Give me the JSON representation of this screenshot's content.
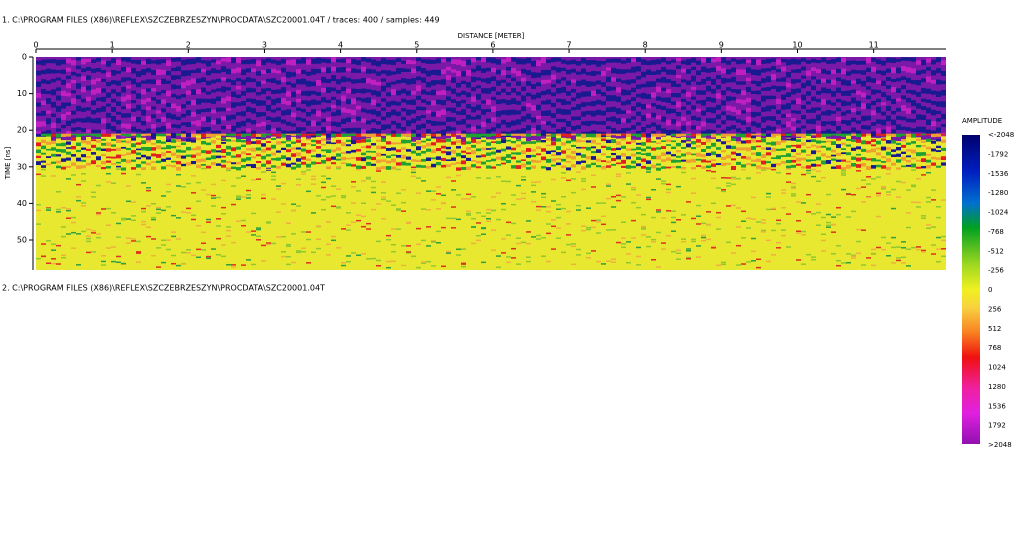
{
  "profiles": [
    {
      "label": "1. C:\\PROGRAM FILES (X86)\\REFLEX\\SZCZEBRZESZYN\\PROCDATA\\SZC20001.04T / traces: 400 / samples: 449"
    },
    {
      "label": "2. C:\\PROGRAM FILES (X86)\\REFLEX\\SZCZEBRZESZYN\\PROCDATA\\SZC20001.04T"
    }
  ],
  "x_axis": {
    "label": "DISTANCE [METER]",
    "lim": [
      0,
      11.95
    ],
    "ticks": [
      0,
      1,
      2,
      3,
      4,
      5,
      6,
      7,
      8,
      9,
      10,
      11
    ]
  },
  "y_axis": {
    "label": "TIME [ns]",
    "lim": [
      0,
      58.2
    ],
    "ticks": [
      0,
      10,
      20,
      30,
      40,
      50
    ]
  },
  "colorbar": {
    "title": "AMPLITUDE",
    "labels": [
      "<-2048",
      "-1792",
      "-1536",
      "-1280",
      "-1024",
      "-768",
      "-512",
      "-256",
      "0",
      "256",
      "512",
      "768",
      "1024",
      "1280",
      "1536",
      "1792",
      ">2048"
    ]
  }
}
